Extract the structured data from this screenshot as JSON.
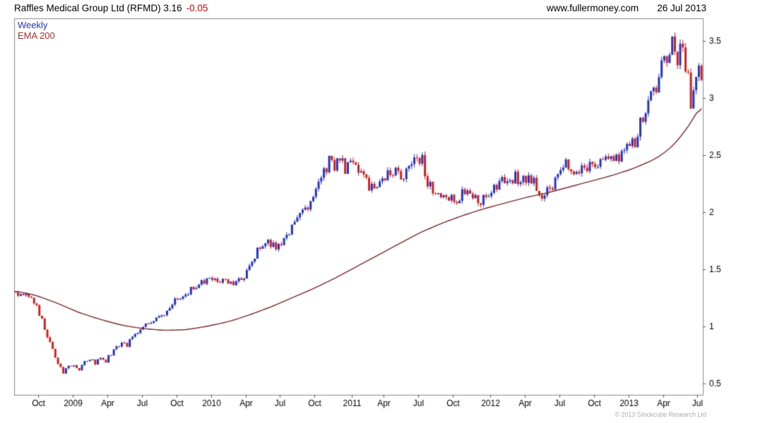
{
  "header": {
    "title": "Raffles Medical Group Ltd (RFMD) 3.16",
    "change": "-0.05",
    "website": "www.fullermoney.com",
    "date": "26 Jul 2013"
  },
  "legend": {
    "series1": "Weekly",
    "series2": "EMA 200"
  },
  "footer": {
    "copyright": "© 2013 Stockcube Research Ltd"
  },
  "colors": {
    "up_candle": "#2433c0",
    "down_candle": "#cf2020",
    "ema_line": "#7a2a2a",
    "legend_weekly": "#2433c0",
    "legend_ema": "#a03030",
    "change_text": "#cc0000",
    "axis_box": "#8a8a8a",
    "tick_mark": "#555555",
    "tick_text": "#000000",
    "copyright_text": "#aaaaaa",
    "background": "#ffffff"
  },
  "chart_data": {
    "type": "candlestick",
    "title": "Raffles Medical Group Ltd (RFMD)",
    "timeframe": "Weekly",
    "last_price": 3.16,
    "change": -0.05,
    "overlay": "EMA 200",
    "grid": false,
    "legend_position": "top-left",
    "y_axis_side": "right",
    "ylim": [
      0.4,
      3.7
    ],
    "y_ticks": [
      0.5,
      1,
      1.5,
      2,
      2.5,
      3,
      3.5
    ],
    "weeks_total": 259,
    "x_ticks": [
      {
        "week": 9,
        "label": "Oct"
      },
      {
        "week": 22,
        "label": "2009"
      },
      {
        "week": 35,
        "label": "Apr"
      },
      {
        "week": 48,
        "label": "Jul"
      },
      {
        "week": 61,
        "label": "Oct"
      },
      {
        "week": 74,
        "label": "2010"
      },
      {
        "week": 87,
        "label": "Apr"
      },
      {
        "week": 100,
        "label": "Jul"
      },
      {
        "week": 113,
        "label": "Oct"
      },
      {
        "week": 127,
        "label": "2011"
      },
      {
        "week": 139,
        "label": "Apr"
      },
      {
        "week": 152,
        "label": "Jul"
      },
      {
        "week": 165,
        "label": "Oct"
      },
      {
        "week": 179,
        "label": "2012"
      },
      {
        "week": 192,
        "label": "Apr"
      },
      {
        "week": 205,
        "label": "Jul"
      },
      {
        "week": 218,
        "label": "Oct"
      },
      {
        "week": 231,
        "label": "2013"
      },
      {
        "week": 244,
        "label": "Apr"
      },
      {
        "week": 257,
        "label": "Jul"
      }
    ],
    "close_keyframes": [
      [
        0,
        1.3
      ],
      [
        3,
        1.26
      ],
      [
        6,
        1.24
      ],
      [
        8,
        1.18
      ],
      [
        10,
        1.05
      ],
      [
        12,
        0.92
      ],
      [
        14,
        0.8
      ],
      [
        16,
        0.68
      ],
      [
        18,
        0.6
      ],
      [
        20,
        0.64
      ],
      [
        22,
        0.67
      ],
      [
        24,
        0.62
      ],
      [
        26,
        0.68
      ],
      [
        28,
        0.71
      ],
      [
        30,
        0.68
      ],
      [
        32,
        0.73
      ],
      [
        34,
        0.7
      ],
      [
        36,
        0.76
      ],
      [
        38,
        0.81
      ],
      [
        40,
        0.86
      ],
      [
        42,
        0.84
      ],
      [
        44,
        0.91
      ],
      [
        46,
        0.96
      ],
      [
        48,
        1.0
      ],
      [
        52,
        1.05
      ],
      [
        56,
        1.12
      ],
      [
        60,
        1.22
      ],
      [
        64,
        1.3
      ],
      [
        68,
        1.33
      ],
      [
        71,
        1.39
      ],
      [
        74,
        1.43
      ],
      [
        78,
        1.41
      ],
      [
        82,
        1.36
      ],
      [
        86,
        1.43
      ],
      [
        88,
        1.52
      ],
      [
        91,
        1.65
      ],
      [
        94,
        1.73
      ],
      [
        97,
        1.7
      ],
      [
        100,
        1.72
      ],
      [
        103,
        1.85
      ],
      [
        106,
        1.95
      ],
      [
        109,
        2.05
      ],
      [
        112,
        2.12
      ],
      [
        115,
        2.28
      ],
      [
        118,
        2.45
      ],
      [
        120,
        2.35
      ],
      [
        122,
        2.48
      ],
      [
        124,
        2.36
      ],
      [
        127,
        2.42
      ],
      [
        130,
        2.32
      ],
      [
        133,
        2.22
      ],
      [
        136,
        2.27
      ],
      [
        139,
        2.3
      ],
      [
        142,
        2.36
      ],
      [
        145,
        2.31
      ],
      [
        148,
        2.39
      ],
      [
        151,
        2.44
      ],
      [
        153,
        2.5
      ],
      [
        154,
        2.3
      ],
      [
        156,
        2.24
      ],
      [
        158,
        2.2
      ],
      [
        161,
        2.1
      ],
      [
        164,
        2.16
      ],
      [
        166,
        2.06
      ],
      [
        168,
        2.16
      ],
      [
        171,
        2.19
      ],
      [
        174,
        2.1
      ],
      [
        177,
        2.13
      ],
      [
        179,
        2.16
      ],
      [
        182,
        2.26
      ],
      [
        185,
        2.31
      ],
      [
        188,
        2.31
      ],
      [
        191,
        2.29
      ],
      [
        194,
        2.31
      ],
      [
        196,
        2.22
      ],
      [
        198,
        2.1
      ],
      [
        201,
        2.21
      ],
      [
        204,
        2.31
      ],
      [
        207,
        2.41
      ],
      [
        210,
        2.36
      ],
      [
        213,
        2.39
      ],
      [
        216,
        2.41
      ],
      [
        219,
        2.43
      ],
      [
        222,
        2.46
      ],
      [
        225,
        2.43
      ],
      [
        228,
        2.5
      ],
      [
        231,
        2.56
      ],
      [
        233,
        2.61
      ],
      [
        235,
        2.76
      ],
      [
        237,
        2.86
      ],
      [
        239,
        3.0
      ],
      [
        241,
        3.1
      ],
      [
        243,
        3.25
      ],
      [
        245,
        3.36
      ],
      [
        247,
        3.46
      ],
      [
        248,
        3.4
      ],
      [
        249,
        3.3
      ],
      [
        250,
        3.42
      ],
      [
        251,
        3.38
      ],
      [
        252,
        3.3
      ],
      [
        253,
        3.2
      ],
      [
        254,
        2.96
      ],
      [
        255,
        3.06
      ],
      [
        256,
        3.18
      ],
      [
        257,
        3.22
      ],
      [
        258,
        3.16
      ]
    ],
    "ema_keyframes": [
      [
        0,
        1.31
      ],
      [
        8,
        1.27
      ],
      [
        16,
        1.2
      ],
      [
        24,
        1.12
      ],
      [
        32,
        1.06
      ],
      [
        40,
        1.01
      ],
      [
        48,
        0.98
      ],
      [
        56,
        0.965
      ],
      [
        64,
        0.97
      ],
      [
        72,
        1.0
      ],
      [
        80,
        1.04
      ],
      [
        88,
        1.1
      ],
      [
        96,
        1.17
      ],
      [
        104,
        1.25
      ],
      [
        112,
        1.33
      ],
      [
        120,
        1.42
      ],
      [
        128,
        1.52
      ],
      [
        136,
        1.62
      ],
      [
        144,
        1.72
      ],
      [
        152,
        1.82
      ],
      [
        160,
        1.9
      ],
      [
        168,
        1.97
      ],
      [
        176,
        2.03
      ],
      [
        184,
        2.08
      ],
      [
        192,
        2.13
      ],
      [
        200,
        2.17
      ],
      [
        208,
        2.22
      ],
      [
        216,
        2.27
      ],
      [
        224,
        2.32
      ],
      [
        232,
        2.38
      ],
      [
        240,
        2.46
      ],
      [
        244,
        2.52
      ],
      [
        248,
        2.6
      ],
      [
        252,
        2.72
      ],
      [
        255,
        2.82
      ],
      [
        258,
        2.95
      ]
    ]
  }
}
